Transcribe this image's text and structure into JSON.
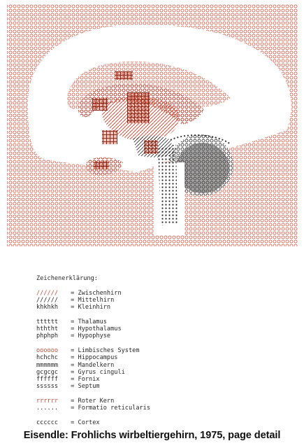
{
  "colors": {
    "ink_red": "#d2503a",
    "ink_black": "#2a2a2a",
    "paper": "#ffffff"
  },
  "legend": {
    "heading": "Zeichenerklärung:",
    "groups": [
      [
        {
          "symbol": "//////",
          "label": "Zwischenhirn",
          "color": "red"
        },
        {
          "symbol": "//////",
          "label": "Mittelhirn",
          "color": "black"
        },
        {
          "symbol": "khkhkh",
          "label": "Kleinhirn",
          "color": "black"
        }
      ],
      [
        {
          "symbol": "tttttt",
          "label": "Thalamus",
          "color": "black"
        },
        {
          "symbol": "hththt",
          "label": "Hypothalamus",
          "color": "black"
        },
        {
          "symbol": "phphph",
          "label": "Hypophyse",
          "color": "black"
        }
      ],
      [
        {
          "symbol": "oooooo",
          "label": "Limbisches System",
          "color": "red"
        },
        {
          "symbol": "hchchc",
          "label": "Hippocampus",
          "color": "black"
        },
        {
          "symbol": "mmmmmm",
          "label": "Mandelkern",
          "color": "black"
        },
        {
          "symbol": "gcgcgc",
          "label": "Gyrus cinguli",
          "color": "black"
        },
        {
          "symbol": "ffffff",
          "label": "Fornix",
          "color": "black"
        },
        {
          "symbol": "ssssss",
          "label": "Septum",
          "color": "black"
        }
      ],
      [
        {
          "symbol": "rrrrrr",
          "label": "Roter Kern",
          "color": "red"
        },
        {
          "symbol": "......",
          "label": "Formatio reticularis",
          "color": "black"
        }
      ],
      [
        {
          "symbol": "cccccc",
          "label": "Cortex",
          "color": "black"
        }
      ]
    ]
  },
  "caption": "Eisendle: Frohlichs wirbeltiergehirn, 1975, page detail"
}
